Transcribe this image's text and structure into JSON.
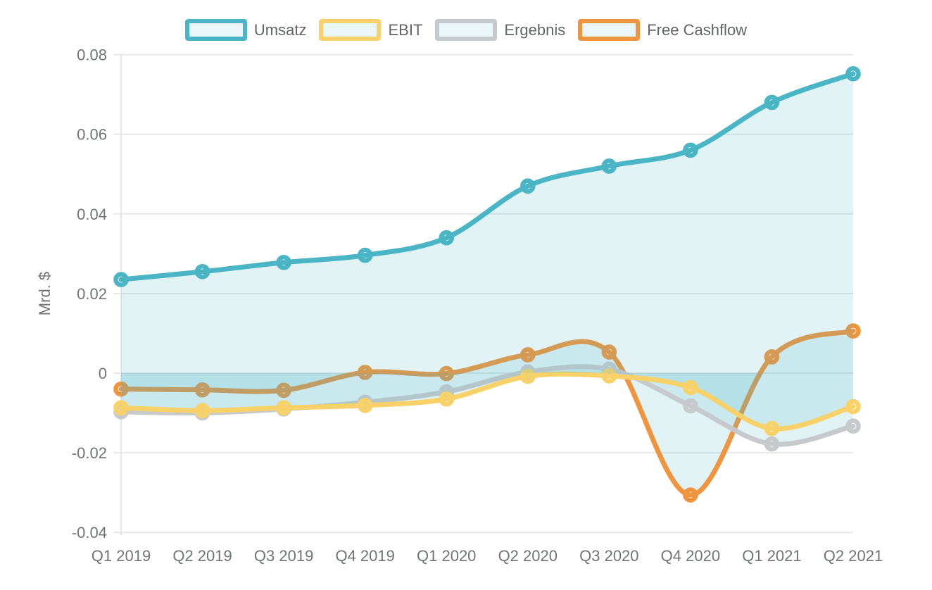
{
  "chart_data": {
    "type": "line",
    "title": "",
    "ylabel": "Mrd. $",
    "xlabel": "",
    "legend_position": "top",
    "grid": true,
    "background": "#ffffff",
    "grid_color": "#e8e8e8",
    "axis_text_color": "#717477",
    "area_fill": "rgba(77,182,198,0.16)",
    "ylim": [
      -0.04,
      0.08
    ],
    "y_ticks": [
      0.08,
      0.06,
      0.04,
      0.02,
      0,
      -0.02,
      -0.04
    ],
    "y_tick_labels": [
      "0.08",
      "0.06",
      "0.04",
      "0.02",
      "0",
      "-0.02",
      "-0.04"
    ],
    "categories": [
      "Q1 2019",
      "Q2 2019",
      "Q3 2019",
      "Q4 2019",
      "Q1 2020",
      "Q2 2020",
      "Q3 2020",
      "Q4 2020",
      "Q1 2021",
      "Q2 2021"
    ],
    "series": [
      {
        "name": "Umsatz",
        "color": "#4ab5c5",
        "values": [
          0.0235,
          0.0255,
          0.0278,
          0.0296,
          0.034,
          0.047,
          0.052,
          0.056,
          0.068,
          0.0752
        ]
      },
      {
        "name": "EBIT",
        "color": "#f8d268",
        "values": [
          -0.0087,
          -0.0094,
          -0.0087,
          -0.0081,
          -0.0065,
          -0.0008,
          -0.0007,
          -0.0036,
          -0.0139,
          -0.0084
        ]
      },
      {
        "name": "Ergebnis",
        "color": "#c7cacc",
        "values": [
          -0.0097,
          -0.01,
          -0.009,
          -0.0073,
          -0.0047,
          0.0003,
          0.001,
          -0.0082,
          -0.0178,
          -0.0133
        ]
      },
      {
        "name": "Free Cashflow",
        "color": "#f0953f",
        "values": [
          -0.004,
          -0.0042,
          -0.0043,
          0.0002,
          -0.0001,
          0.0046,
          0.0053,
          -0.0306,
          0.0041,
          0.0106
        ]
      }
    ]
  }
}
